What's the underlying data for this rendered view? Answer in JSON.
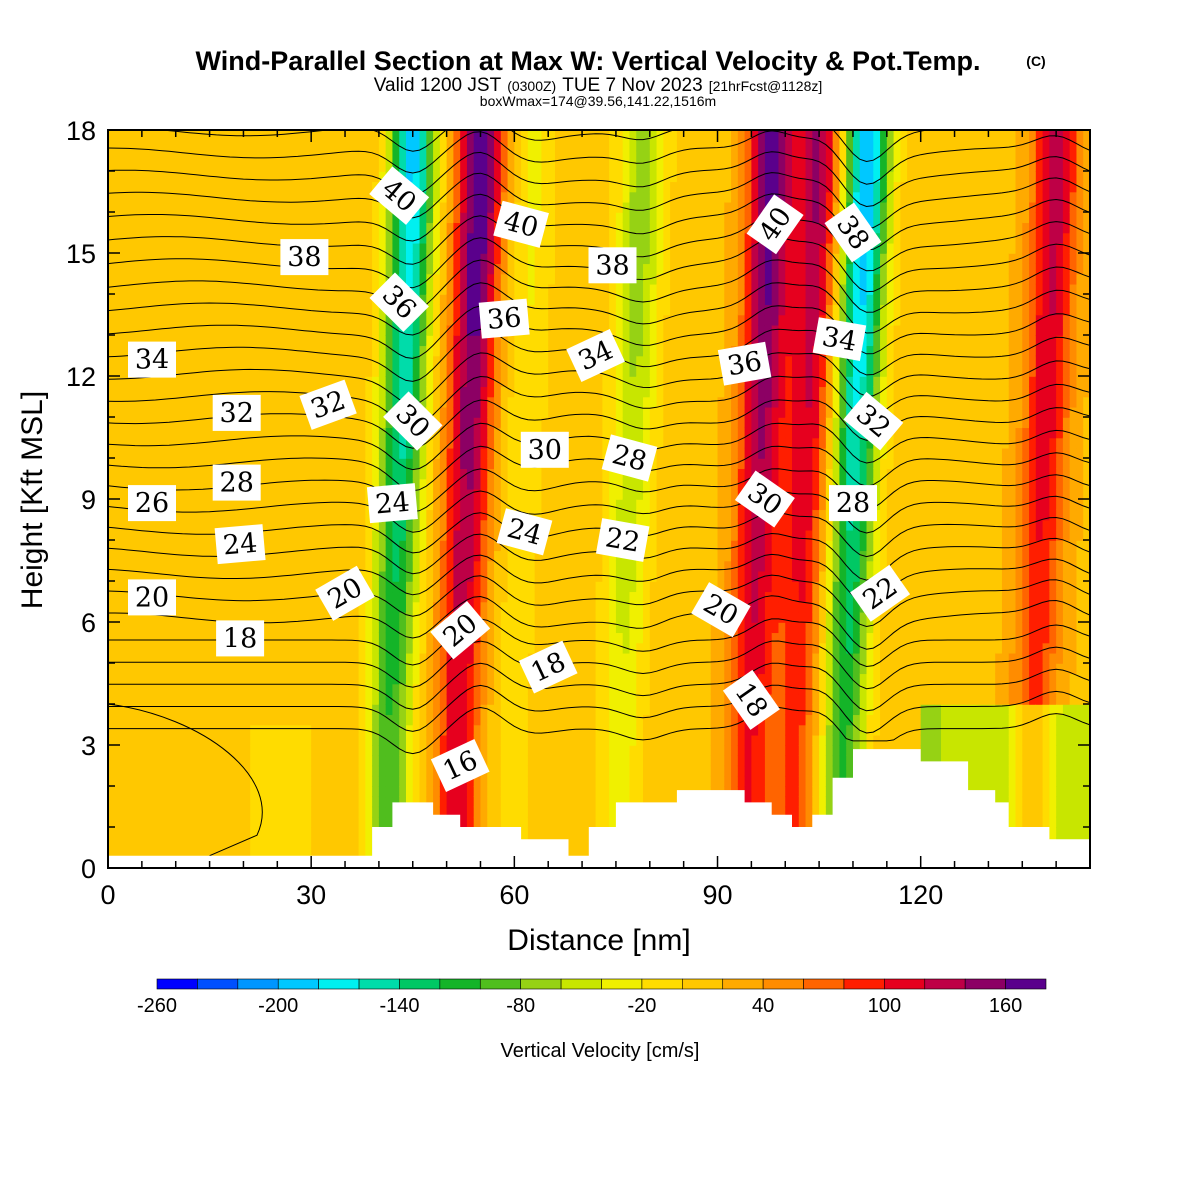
{
  "title": {
    "main": "Wind-Parallel Section at Max W: Vertical Velocity & Pot.Temp.",
    "copyright": "(C)",
    "valid_prefix": "Valid 1200 JST",
    "valid_utc": "(0300Z)",
    "valid_date": "TUE 7 Nov 2023",
    "forecast": "[21hrFcst@1128z]",
    "boxw": "boxWmax=174@39.56,141.22,1516m"
  },
  "chart_data": {
    "type": "heatmap",
    "xlabel": "Distance [nm]",
    "ylabel": "Height [Kft MSL]",
    "xlim": [
      0,
      145
    ],
    "ylim": [
      0,
      18
    ],
    "x_ticks": [
      0,
      30,
      60,
      90,
      120
    ],
    "y_ticks": [
      0,
      3,
      6,
      9,
      12,
      15,
      18
    ],
    "field": "Vertical Velocity",
    "field_unit": "cm/s",
    "overlay": "Pot.Temp. contours",
    "colorbar": {
      "label": "Vertical Velocity [cm/s]",
      "min": -260,
      "max": 180,
      "step": 20,
      "tick_values": [
        -260,
        -200,
        -140,
        -80,
        -20,
        40,
        100,
        160
      ],
      "tick_labels": [
        "-260",
        "-200",
        "-140",
        "-80",
        "-20",
        "40",
        "100",
        "160"
      ],
      "colors": [
        "#0000ff",
        "#0050ff",
        "#0096ff",
        "#00c8ff",
        "#00f0f0",
        "#00dcaa",
        "#00c864",
        "#14b428",
        "#50be1e",
        "#96d214",
        "#c8e600",
        "#f0f000",
        "#ffdc00",
        "#ffc800",
        "#ffaa00",
        "#ff8c00",
        "#ff6400",
        "#ff1e00",
        "#e6001e",
        "#be0046",
        "#8c0064",
        "#5a008c"
      ]
    },
    "columns": [
      {
        "x": 45,
        "w_cm_s": -200
      },
      {
        "x": 55,
        "w_cm_s": 170
      },
      {
        "x": 63,
        "w_cm_s": -40
      },
      {
        "x": 79,
        "w_cm_s": -90
      },
      {
        "x": 98,
        "w_cm_s": 160
      },
      {
        "x": 105,
        "w_cm_s": 130
      },
      {
        "x": 112,
        "w_cm_s": -220
      },
      {
        "x": 140,
        "w_cm_s": 120
      }
    ],
    "terrain": [
      {
        "x": 0,
        "y": 0.3
      },
      {
        "x": 39,
        "y": 0.3
      },
      {
        "x": 39,
        "y": 1.0
      },
      {
        "x": 42,
        "y": 1.0
      },
      {
        "x": 42,
        "y": 1.6
      },
      {
        "x": 48,
        "y": 1.6
      },
      {
        "x": 48,
        "y": 1.3
      },
      {
        "x": 52,
        "y": 1.3
      },
      {
        "x": 52,
        "y": 1.0
      },
      {
        "x": 61,
        "y": 1.0
      },
      {
        "x": 61,
        "y": 0.7
      },
      {
        "x": 68,
        "y": 0.7
      },
      {
        "x": 68,
        "y": 0.3
      },
      {
        "x": 71,
        "y": 0.3
      },
      {
        "x": 71,
        "y": 1.0
      },
      {
        "x": 75,
        "y": 1.0
      },
      {
        "x": 75,
        "y": 1.6
      },
      {
        "x": 84,
        "y": 1.6
      },
      {
        "x": 84,
        "y": 1.9
      },
      {
        "x": 94,
        "y": 1.9
      },
      {
        "x": 94,
        "y": 1.6
      },
      {
        "x": 98,
        "y": 1.6
      },
      {
        "x": 98,
        "y": 1.3
      },
      {
        "x": 101,
        "y": 1.3
      },
      {
        "x": 101,
        "y": 1.0
      },
      {
        "x": 104,
        "y": 1.0
      },
      {
        "x": 104,
        "y": 1.3
      },
      {
        "x": 107,
        "y": 1.3
      },
      {
        "x": 107,
        "y": 2.2
      },
      {
        "x": 110,
        "y": 2.2
      },
      {
        "x": 110,
        "y": 2.9
      },
      {
        "x": 120,
        "y": 2.9
      },
      {
        "x": 120,
        "y": 2.6
      },
      {
        "x": 127,
        "y": 2.6
      },
      {
        "x": 127,
        "y": 1.9
      },
      {
        "x": 131,
        "y": 1.9
      },
      {
        "x": 131,
        "y": 1.6
      },
      {
        "x": 133,
        "y": 1.6
      },
      {
        "x": 133,
        "y": 1.0
      },
      {
        "x": 139,
        "y": 1.0
      },
      {
        "x": 139,
        "y": 0.7
      },
      {
        "x": 145,
        "y": 0.7
      }
    ],
    "contour_labels": [
      {
        "text": "40",
        "x": 43,
        "y": 16.4,
        "angle": 40
      },
      {
        "text": "40",
        "x": 61,
        "y": 15.7,
        "angle": 15
      },
      {
        "text": "40",
        "x": 98.5,
        "y": 15.7,
        "angle": -55
      },
      {
        "text": "38",
        "x": 29,
        "y": 14.9,
        "angle": 0
      },
      {
        "text": "38",
        "x": 74.5,
        "y": 14.7,
        "angle": 0
      },
      {
        "text": "38",
        "x": 110,
        "y": 15.5,
        "angle": 55
      },
      {
        "text": "36",
        "x": 43,
        "y": 13.8,
        "angle": 45
      },
      {
        "text": "36",
        "x": 58.5,
        "y": 13.4,
        "angle": -5
      },
      {
        "text": "36",
        "x": 94,
        "y": 12.3,
        "angle": -10
      },
      {
        "text": "34",
        "x": 6.5,
        "y": 12.4,
        "angle": 0
      },
      {
        "text": "34",
        "x": 72,
        "y": 12.5,
        "angle": -25
      },
      {
        "text": "34",
        "x": 108,
        "y": 12.9,
        "angle": 10
      },
      {
        "text": "32",
        "x": 19,
        "y": 11.1,
        "angle": 0
      },
      {
        "text": "32",
        "x": 32.5,
        "y": 11.3,
        "angle": -20
      },
      {
        "text": "32",
        "x": 113,
        "y": 10.9,
        "angle": 40
      },
      {
        "text": "30",
        "x": 45,
        "y": 10.9,
        "angle": 45
      },
      {
        "text": "30",
        "x": 64.5,
        "y": 10.2,
        "angle": 0
      },
      {
        "text": "30",
        "x": 97,
        "y": 9.0,
        "angle": 35
      },
      {
        "text": "28",
        "x": 19,
        "y": 9.4,
        "angle": 0
      },
      {
        "text": "28",
        "x": 77,
        "y": 10.0,
        "angle": 15
      },
      {
        "text": "28",
        "x": 110,
        "y": 8.9,
        "angle": 0
      },
      {
        "text": "26",
        "x": 6.5,
        "y": 8.9,
        "angle": 0
      },
      {
        "text": "24",
        "x": 42,
        "y": 8.9,
        "angle": -5
      },
      {
        "text": "24",
        "x": 61.5,
        "y": 8.2,
        "angle": 15
      },
      {
        "text": "24",
        "x": 19.5,
        "y": 7.9,
        "angle": -5
      },
      {
        "text": "22",
        "x": 76,
        "y": 8.0,
        "angle": 10
      },
      {
        "text": "22",
        "x": 114,
        "y": 6.7,
        "angle": -35
      },
      {
        "text": "20",
        "x": 6.5,
        "y": 6.6,
        "angle": 0
      },
      {
        "text": "20",
        "x": 35,
        "y": 6.7,
        "angle": -30
      },
      {
        "text": "20",
        "x": 52,
        "y": 5.8,
        "angle": -40
      },
      {
        "text": "20",
        "x": 90.5,
        "y": 6.3,
        "angle": 30
      },
      {
        "text": "18",
        "x": 19.5,
        "y": 5.6,
        "angle": 0
      },
      {
        "text": "18",
        "x": 65,
        "y": 4.9,
        "angle": -25
      },
      {
        "text": "18",
        "x": 95,
        "y": 4.1,
        "angle": 55
      },
      {
        "text": "16",
        "x": 52,
        "y": 2.5,
        "angle": -25
      }
    ]
  }
}
